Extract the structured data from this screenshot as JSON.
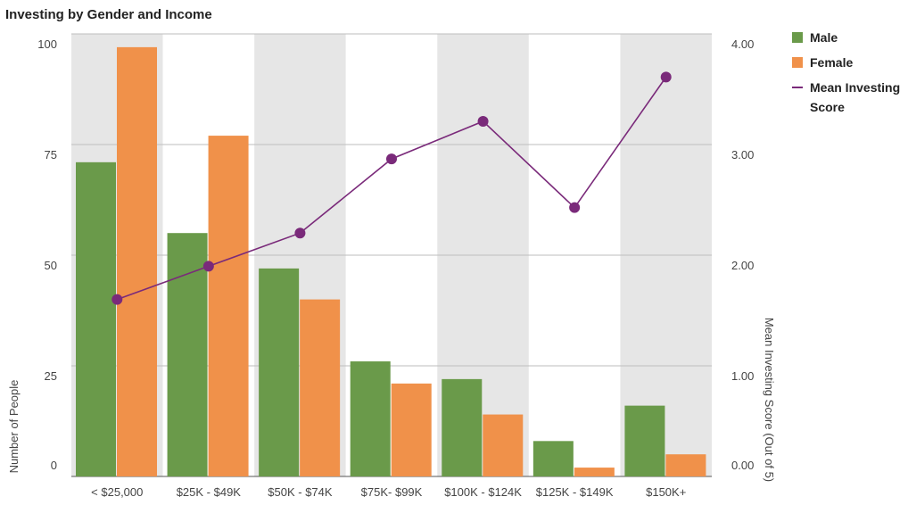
{
  "chart_data": {
    "type": "bar",
    "title": "Investing by Gender and Income",
    "categories": [
      "< $25,000",
      "$25K - $49K",
      "$50K - $74K",
      "$75K- $99K",
      "$100K - $124K",
      "$125K - $149K",
      "$150K+"
    ],
    "series": [
      {
        "name": "Male",
        "type": "bar",
        "axis": "left",
        "color": "#6a9a4a",
        "values": [
          71,
          55,
          47,
          26,
          22,
          8,
          16
        ]
      },
      {
        "name": "Female",
        "type": "bar",
        "axis": "left",
        "color": "#f0914a",
        "values": [
          97,
          77,
          40,
          21,
          14,
          2,
          5
        ]
      },
      {
        "name": "Mean Investing Score",
        "type": "line",
        "axis": "right",
        "color": "#7a2a7a",
        "values": [
          1.6,
          1.9,
          2.2,
          2.87,
          3.21,
          2.43,
          3.61
        ]
      }
    ],
    "ylabel": "Number of People",
    "ylabel_right": "Mean Investing Score (Out of 5)",
    "ylim": [
      0,
      100
    ],
    "ylim_right": [
      0,
      4
    ],
    "yticks": [
      "0",
      "25",
      "50",
      "75",
      "100"
    ],
    "yticks_right": [
      "0.00",
      "1.00",
      "2.00",
      "3.00",
      "4.00"
    ],
    "legend": {
      "placement": "right",
      "entries": [
        {
          "label_lines": [
            "Male"
          ],
          "marker": "square",
          "color": "#6a9a4a"
        },
        {
          "label_lines": [
            "Female"
          ],
          "marker": "square",
          "color": "#f0914a"
        },
        {
          "label_lines": [
            "Mean Investing",
            "Score"
          ],
          "marker": "line",
          "color": "#7a2a7a"
        }
      ]
    },
    "grid": true,
    "band_colors": [
      "#e6e6e6",
      "#ffffff"
    ]
  }
}
